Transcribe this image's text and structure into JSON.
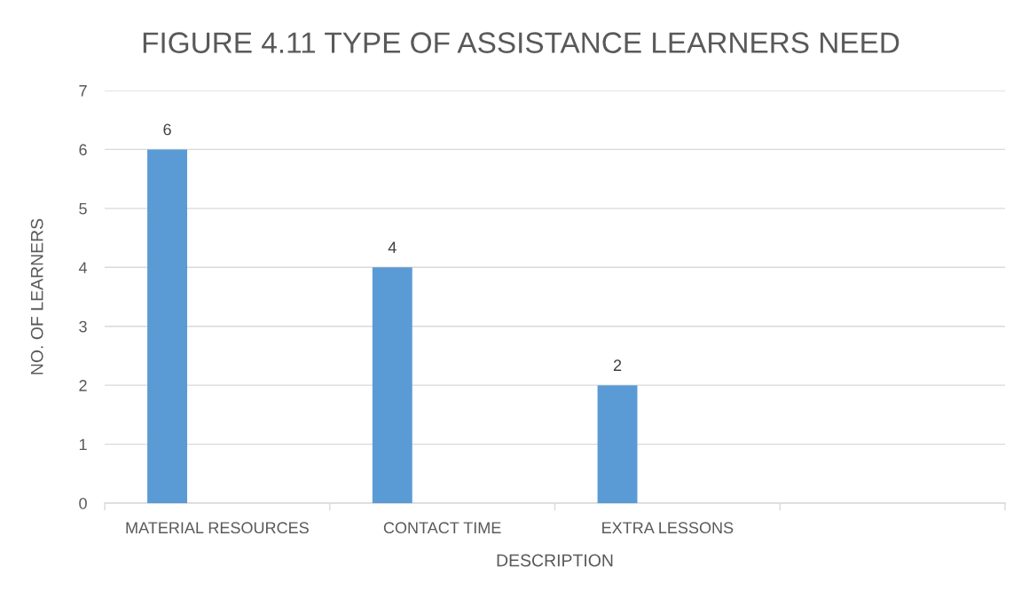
{
  "chart_data": {
    "type": "bar",
    "title": "FIGURE 4.11 TYPE OF ASSISTANCE LEARNERS NEED",
    "xlabel": "DESCRIPTION",
    "ylabel": "NO. OF LEARNERS",
    "categories": [
      "MATERIAL RESOURCES",
      "CONTACT TIME",
      "EXTRA LESSONS",
      null
    ],
    "values": [
      6,
      4,
      2,
      null
    ],
    "color": "#5b9bd5",
    "ylim": [
      0,
      7
    ],
    "yticks": [
      0,
      1,
      2,
      3,
      4,
      5,
      6,
      7
    ],
    "grid": "y",
    "data_labels": true
  }
}
